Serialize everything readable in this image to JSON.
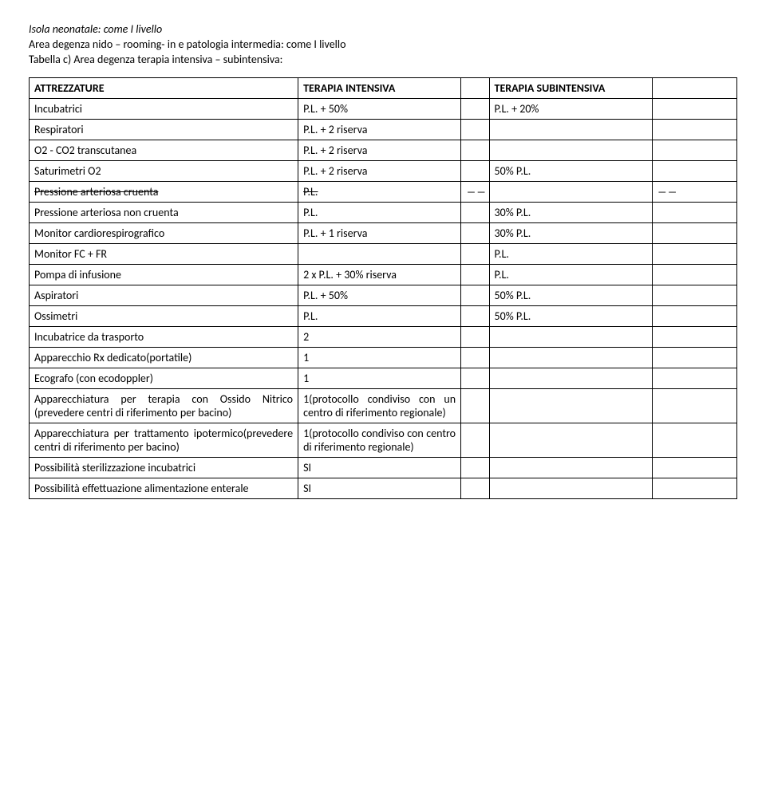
{
  "intro": {
    "line1": "Isola neonatale: come I livello",
    "line2": "Area degenza nido – rooming- in e patologia intermedia: come I livello",
    "line3": "Tabella c) Area degenza terapia intensiva – subintensiva:"
  },
  "header": {
    "c1": "ATTREZZATURE",
    "c2": "TERAPIA INTENSIVA",
    "c4": "TERAPIA SUBINTENSIVA"
  },
  "rows": {
    "r1": {
      "label": "Incubatrici",
      "col2": "P.L. + 50%",
      "col4": "P.L. + 20%"
    },
    "r2": {
      "label": "Respiratori",
      "col2": "P.L. + 2 riserva"
    },
    "r3": {
      "label": "O2 - CO2 transcutanea",
      "col2": "P.L. + 2 riserva"
    },
    "r4": {
      "label": "Saturimetri O2",
      "col2": "P.L. + 2 riserva",
      "col4": "50% P.L."
    },
    "r5": {
      "label": "Pressione arteriosa cruenta",
      "col2": "P.L.",
      "col3": "――",
      "col5": "――"
    },
    "r6": {
      "label": "Pressione arteriosa non cruenta",
      "col2": "P.L.",
      "col4": "30% P.L."
    },
    "r7": {
      "label": "Monitor cardiorespirografico",
      "col2": "P.L. + 1 riserva",
      "col4": "30% P.L."
    },
    "r8": {
      "label": "Monitor FC + FR",
      "col4": "P.L."
    },
    "r9": {
      "label": "Pompa di infusione",
      "col2": "2 x P.L. + 30% riserva",
      "col4": "P.L."
    },
    "r10": {
      "label": "Aspiratori",
      "col2": "P.L. + 50%",
      "col4": "50% P.L."
    },
    "r11": {
      "label": "Ossimetri",
      "col2": "P.L.",
      "col4": "50% P.L."
    },
    "r12": {
      "label": "Incubatrice da trasporto",
      "col2": "2"
    },
    "r13": {
      "label": "Apparecchio Rx dedicato(portatile)",
      "col2": "1"
    },
    "r14": {
      "label": "Ecografo (con ecodoppler)",
      "col2": "1"
    },
    "r15": {
      "label": "Apparecchiatura per terapia con Ossido Nitrico (prevedere centri di riferimento per bacino)",
      "col2": "1(protocollo condiviso con un centro di riferimento regionale)"
    },
    "r16": {
      "label": "Apparecchiatura per trattamento ipotermico(prevedere centri di riferimento per bacino)",
      "col2": "1(protocollo condiviso con centro di riferimento regionale)"
    },
    "r17": {
      "label": "Possibilità sterilizzazione incubatrici",
      "col2": "SI"
    },
    "r18": {
      "label": "Possibilità effettuazione alimentazione enterale",
      "col2": "SI"
    }
  }
}
